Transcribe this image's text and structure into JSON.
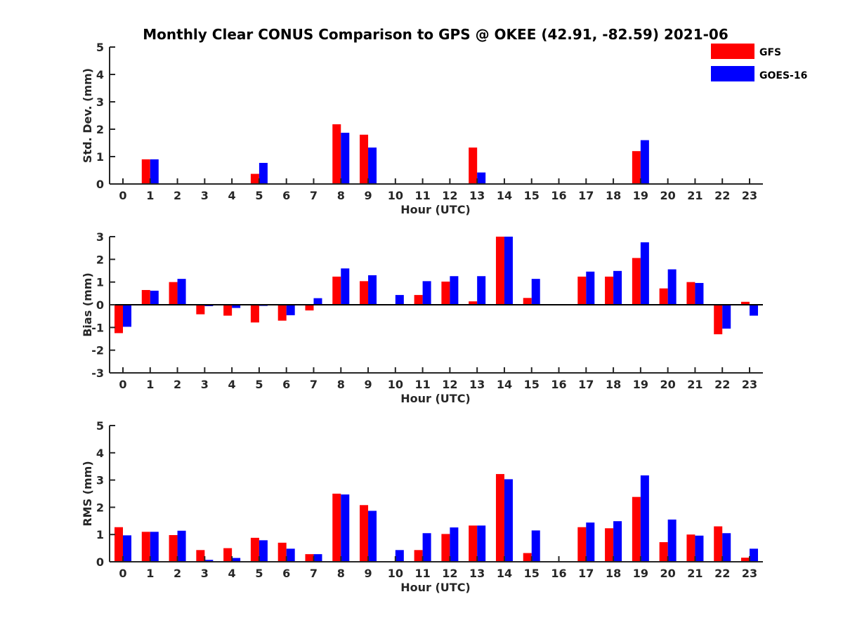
{
  "title": "Monthly Clear CONUS Comparison to GPS @ OKEE (42.91, -82.59) 2021-06",
  "legend": {
    "placement": "top-right",
    "items": [
      {
        "name": "GFS",
        "color": "#ff0000"
      },
      {
        "name": "GOES-16",
        "color": "#0000ff"
      }
    ]
  },
  "chart_data": [
    {
      "type": "bar",
      "xlabel": "Hour (UTC)",
      "ylabel": "Std. Dev. (mm)",
      "ylim": [
        0,
        5
      ],
      "yticks": [
        "0",
        "1",
        "2",
        "3",
        "4",
        "5"
      ],
      "categories": [
        "0",
        "1",
        "2",
        "3",
        "4",
        "5",
        "6",
        "7",
        "8",
        "9",
        "10",
        "11",
        "12",
        "13",
        "14",
        "15",
        "16",
        "17",
        "18",
        "19",
        "20",
        "21",
        "22",
        "23"
      ],
      "series": [
        {
          "name": "GFS",
          "color": "#ff0000",
          "values": [
            0,
            0.9,
            0,
            0,
            0,
            0.37,
            0,
            0,
            2.18,
            1.8,
            0,
            0,
            0,
            1.33,
            0,
            0,
            0,
            0,
            0,
            1.2,
            0,
            0,
            0,
            0
          ]
        },
        {
          "name": "GOES-16",
          "color": "#0000ff",
          "values": [
            0,
            0.9,
            0,
            0,
            0,
            0.77,
            0,
            0,
            1.87,
            1.33,
            0,
            0,
            0,
            0.42,
            0,
            0,
            0,
            0,
            0,
            1.6,
            0,
            0,
            0,
            0
          ]
        }
      ]
    },
    {
      "type": "bar",
      "xlabel": "Hour (UTC)",
      "ylabel": "Bias (mm)",
      "ylim": [
        -3,
        3
      ],
      "yticks": [
        "-3",
        "-2",
        "-1",
        "0",
        "1",
        "2",
        "3"
      ],
      "categories": [
        "0",
        "1",
        "2",
        "3",
        "4",
        "5",
        "6",
        "7",
        "8",
        "9",
        "10",
        "11",
        "12",
        "13",
        "14",
        "15",
        "16",
        "17",
        "18",
        "19",
        "20",
        "21",
        "22",
        "23"
      ],
      "series": [
        {
          "name": "GFS",
          "color": "#ff0000",
          "values": [
            -1.25,
            0.65,
            1.0,
            -0.42,
            -0.48,
            -0.78,
            -0.7,
            -0.25,
            1.24,
            1.04,
            0,
            0.43,
            1.02,
            0.15,
            3.0,
            0.3,
            0,
            1.24,
            1.24,
            2.06,
            0.72,
            1.0,
            -1.3,
            0.13
          ]
        },
        {
          "name": "GOES-16",
          "color": "#0000ff",
          "values": [
            -0.97,
            0.62,
            1.14,
            -0.06,
            -0.14,
            -0.05,
            -0.46,
            0.29,
            1.6,
            1.3,
            0.43,
            1.04,
            1.26,
            1.26,
            3.0,
            1.14,
            0,
            1.46,
            1.49,
            2.75,
            1.56,
            0.96,
            -1.05,
            -0.48
          ]
        }
      ]
    },
    {
      "type": "bar",
      "xlabel": "Hour (UTC)",
      "ylabel": "RMS (mm)",
      "ylim": [
        0,
        5
      ],
      "yticks": [
        "0",
        "1",
        "2",
        "3",
        "4",
        "5"
      ],
      "categories": [
        "0",
        "1",
        "2",
        "3",
        "4",
        "5",
        "6",
        "7",
        "8",
        "9",
        "10",
        "11",
        "12",
        "13",
        "14",
        "15",
        "16",
        "17",
        "18",
        "19",
        "20",
        "21",
        "22",
        "23"
      ],
      "series": [
        {
          "name": "GFS",
          "color": "#ff0000",
          "values": [
            1.27,
            1.1,
            0.98,
            0.43,
            0.5,
            0.88,
            0.7,
            0.28,
            2.5,
            2.08,
            0,
            0.43,
            1.02,
            1.33,
            3.22,
            0.32,
            0,
            1.27,
            1.23,
            2.38,
            0.72,
            1.0,
            1.3,
            0.15
          ]
        },
        {
          "name": "GOES-16",
          "color": "#0000ff",
          "values": [
            0.97,
            1.1,
            1.14,
            0.07,
            0.14,
            0.79,
            0.48,
            0.28,
            2.47,
            1.87,
            0.43,
            1.05,
            1.26,
            1.33,
            3.03,
            1.15,
            0,
            1.44,
            1.49,
            3.17,
            1.55,
            0.96,
            1.05,
            0.48
          ]
        }
      ]
    }
  ]
}
